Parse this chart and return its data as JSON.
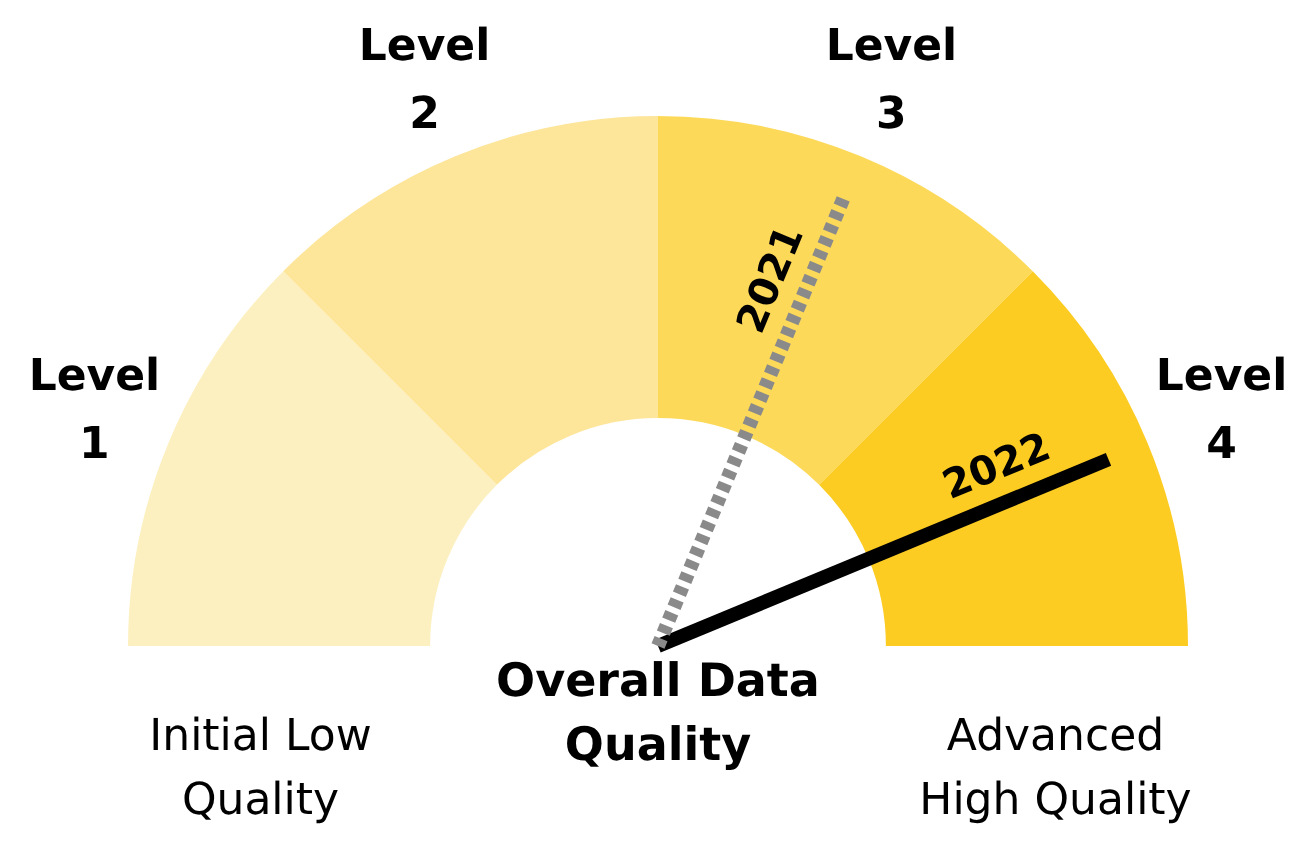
{
  "chart_data": {
    "type": "donut",
    "title": "Overall Data Quality",
    "categories": [
      "Level 1",
      "Level 2",
      "Level 3",
      "Level 4"
    ],
    "values": [
      25,
      25,
      25,
      25
    ],
    "colors": [
      "#fdf0c0",
      "#fde59a",
      "#fdd95a",
      "#fccc22"
    ],
    "needle": "Level 4",
    "annotations": [
      {
        "text": "2021",
        "x": "Level 3"
      },
      {
        "text": "2022",
        "x": "Level 4"
      },
      "Initial Low Quality",
      "Advanced High Quality"
    ]
  }
}
